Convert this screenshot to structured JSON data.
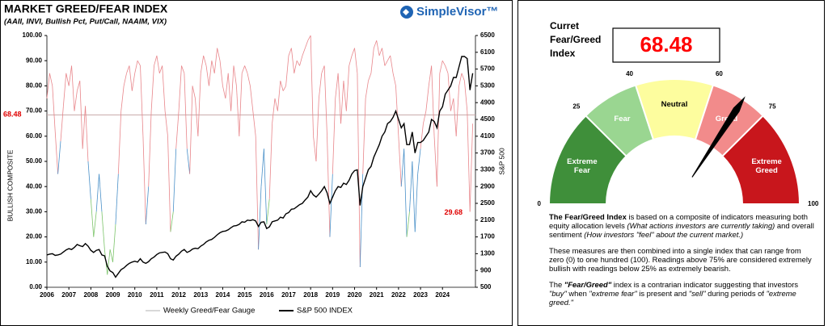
{
  "logo": "SimpleVisor™",
  "chart_data": [
    {
      "type": "line",
      "title": "MARKET GREED/FEAR INDEX",
      "subtitle": "(AAII, INVI, Bullish Pct, Put/Call, NAAIM, VIX)",
      "y_label": "BULLISH COMPOSITE",
      "y2_label": "S&P 500",
      "xlim": [
        2006,
        2025.5
      ],
      "xticks": [
        2006,
        2007,
        2008,
        2009,
        2010,
        2011,
        2012,
        2013,
        2014,
        2015,
        2016,
        2017,
        2018,
        2019,
        2020,
        2021,
        2022,
        2023,
        2024
      ],
      "ylim": [
        0,
        100
      ],
      "yticks": [
        {
          "value": 0,
          "label": "0.00"
        },
        {
          "value": 10,
          "label": "10.00"
        },
        {
          "value": 20,
          "label": "20.00"
        },
        {
          "value": 30,
          "label": "30.00"
        },
        {
          "value": 40,
          "label": "40.00"
        },
        {
          "value": 50,
          "label": "50.00"
        },
        {
          "value": 60,
          "label": "60.00"
        },
        {
          "value": 70,
          "label": "70.00"
        },
        {
          "value": 80,
          "label": "80.00"
        },
        {
          "value": 90,
          "label": "90.00"
        },
        {
          "value": 100,
          "label": "100.00"
        }
      ],
      "y2lim": [
        500,
        6500
      ],
      "y2ticks": [
        500,
        900,
        1300,
        1700,
        2100,
        2500,
        2900,
        3300,
        3700,
        4100,
        4500,
        4900,
        5300,
        5700,
        6100,
        6500
      ],
      "grid": false,
      "reference_line": {
        "value": 68.48,
        "label": "68.48",
        "color": "#c8a8a8"
      },
      "annotation": {
        "value": 29.68,
        "label": "29.68",
        "color": "#e00000"
      },
      "x": [
        2006,
        2006.125,
        2006.25,
        2006.375,
        2006.5,
        2006.625,
        2006.75,
        2006.875,
        2007,
        2007.125,
        2007.25,
        2007.375,
        2007.5,
        2007.625,
        2007.75,
        2007.875,
        2008,
        2008.125,
        2008.25,
        2008.375,
        2008.5,
        2008.625,
        2008.75,
        2008.875,
        2009,
        2009.125,
        2009.25,
        2009.375,
        2009.5,
        2009.625,
        2009.75,
        2009.875,
        2010,
        2010.125,
        2010.25,
        2010.375,
        2010.5,
        2010.625,
        2010.75,
        2010.875,
        2011,
        2011.125,
        2011.25,
        2011.375,
        2011.5,
        2011.625,
        2011.75,
        2011.875,
        2012,
        2012.125,
        2012.25,
        2012.375,
        2012.5,
        2012.625,
        2012.75,
        2012.875,
        2013,
        2013.125,
        2013.25,
        2013.375,
        2013.5,
        2013.625,
        2013.75,
        2013.875,
        2014,
        2014.125,
        2014.25,
        2014.375,
        2014.5,
        2014.625,
        2014.75,
        2014.875,
        2015,
        2015.125,
        2015.25,
        2015.375,
        2015.5,
        2015.625,
        2015.75,
        2015.875,
        2016,
        2016.125,
        2016.25,
        2016.375,
        2016.5,
        2016.625,
        2016.75,
        2016.875,
        2017,
        2017.125,
        2017.25,
        2017.375,
        2017.5,
        2017.625,
        2017.75,
        2017.875,
        2018,
        2018.125,
        2018.25,
        2018.375,
        2018.5,
        2018.625,
        2018.75,
        2018.875,
        2019,
        2019.125,
        2019.25,
        2019.375,
        2019.5,
        2019.625,
        2019.75,
        2019.875,
        2020,
        2020.125,
        2020.25,
        2020.375,
        2020.5,
        2020.625,
        2020.75,
        2020.875,
        2021,
        2021.125,
        2021.25,
        2021.375,
        2021.5,
        2021.625,
        2021.75,
        2021.875,
        2022,
        2022.125,
        2022.25,
        2022.375,
        2022.5,
        2022.625,
        2022.75,
        2022.875,
        2023,
        2023.125,
        2023.25,
        2023.375,
        2023.5,
        2023.625,
        2023.75,
        2023.875,
        2024,
        2024.125,
        2024.25,
        2024.375,
        2024.5,
        2024.625,
        2024.75,
        2024.875,
        2025,
        2025.125,
        2025.25,
        2025.375
      ],
      "series": [
        {
          "name": "Weekly Greed/Fear Gauge",
          "color": "#b0b0b0",
          "color_bands": [
            {
              "min": 60,
              "color": "#e8868b"
            },
            {
              "min": 40,
              "color": "#4a90c8"
            },
            {
              "min": 0,
              "color": "#7cc46a"
            }
          ],
          "values": [
            75,
            85,
            80,
            62,
            45,
            58,
            72,
            85,
            80,
            88,
            70,
            78,
            82,
            55,
            72,
            50,
            35,
            20,
            30,
            45,
            30,
            15,
            5,
            15,
            10,
            25,
            45,
            70,
            80,
            85,
            88,
            78,
            85,
            90,
            88,
            60,
            25,
            40,
            70,
            88,
            92,
            85,
            88,
            70,
            60,
            22,
            30,
            55,
            70,
            88,
            85,
            55,
            45,
            80,
            75,
            60,
            85,
            92,
            88,
            80,
            90,
            85,
            95,
            90,
            80,
            75,
            85,
            70,
            88,
            80,
            60,
            85,
            88,
            85,
            80,
            70,
            60,
            15,
            40,
            55,
            25,
            35,
            65,
            75,
            70,
            82,
            78,
            80,
            92,
            95,
            85,
            90,
            88,
            92,
            95,
            98,
            100,
            60,
            50,
            75,
            85,
            88,
            60,
            20,
            45,
            75,
            85,
            65,
            82,
            70,
            88,
            92,
            95,
            85,
            8,
            45,
            75,
            82,
            85,
            95,
            98,
            92,
            95,
            88,
            90,
            92,
            85,
            80,
            60,
            40,
            55,
            20,
            30,
            50,
            22,
            45,
            55,
            65,
            70,
            80,
            88,
            60,
            40,
            85,
            90,
            88,
            85,
            70,
            75,
            60,
            80,
            85,
            82,
            70,
            30,
            65
          ]
        },
        {
          "name": "S&P 500 INDEX",
          "color": "#000000",
          "axis": "y2",
          "values": [
            1270,
            1290,
            1300,
            1260,
            1270,
            1290,
            1340,
            1390,
            1420,
            1400,
            1450,
            1520,
            1490,
            1470,
            1540,
            1480,
            1380,
            1330,
            1380,
            1400,
            1270,
            1250,
            1000,
            890,
            850,
            740,
            830,
            920,
            960,
            1020,
            1070,
            1100,
            1120,
            1100,
            1180,
            1100,
            1070,
            1110,
            1180,
            1220,
            1280,
            1320,
            1330,
            1340,
            1300,
            1180,
            1150,
            1240,
            1290,
            1360,
            1400,
            1330,
            1360,
            1410,
            1430,
            1420,
            1480,
            1520,
            1580,
            1620,
            1640,
            1690,
            1750,
            1800,
            1830,
            1840,
            1870,
            1920,
            1960,
            1970,
            2000,
            2060,
            2050,
            2100,
            2090,
            2110,
            2080,
            1950,
            2050,
            2060,
            1900,
            1940,
            2060,
            2080,
            2100,
            2170,
            2150,
            2250,
            2280,
            2360,
            2370,
            2420,
            2470,
            2500,
            2580,
            2650,
            2800,
            2700,
            2650,
            2720,
            2800,
            2900,
            2750,
            2500,
            2650,
            2800,
            2900,
            2880,
            2980,
            2950,
            3050,
            3200,
            3280,
            3300,
            2450,
            2900,
            3100,
            3300,
            3380,
            3600,
            3750,
            3900,
            4100,
            4200,
            4400,
            4450,
            4550,
            4700,
            4500,
            4300,
            4400,
            3900,
            3900,
            4200,
            3700,
            3950,
            3950,
            4000,
            4100,
            4200,
            4500,
            4450,
            4300,
            4700,
            4800,
            5100,
            5200,
            5300,
            5500,
            5500,
            5750,
            6000,
            6000,
            5950,
            5200,
            5600
          ]
        }
      ]
    },
    {
      "type": "gauge",
      "title_lines": [
        "Curret",
        "Fear/Greed",
        "Index"
      ],
      "value": 68.48,
      "value_color": "#ff0000",
      "range": [
        0,
        100
      ],
      "ticks": [
        0,
        25,
        40,
        60,
        75,
        100
      ],
      "segments": [
        {
          "name": "Extreme Fear",
          "from": 0,
          "to": 25,
          "color": "#3f8f3a",
          "text_color": "#ffffff"
        },
        {
          "name": "Fear",
          "from": 25,
          "to": 40,
          "color": "#9ad691",
          "text_color": "#ffffff"
        },
        {
          "name": "Neutral",
          "from": 40,
          "to": 60,
          "color": "#fdfd9e",
          "text_color": "#000000"
        },
        {
          "name": "Greed",
          "from": 60,
          "to": 75,
          "color": "#f28b8b",
          "text_color": "#ffffff"
        },
        {
          "name": "Extreme Greed",
          "from": 75,
          "to": 100,
          "color": "#c8161c",
          "text_color": "#ffffff"
        }
      ]
    }
  ],
  "description": [
    [
      {
        "text": "The Fear/Greed Index",
        "style": "b"
      },
      {
        "text": " is based on a composite of indicators measuring both equity allocation levels "
      },
      {
        "text": "(What actions investors are currently taking)",
        "style": "i"
      },
      {
        "text": " and overall sentiment "
      },
      {
        "text": "(How investors \"feel\" about the current market.)",
        "style": "i"
      }
    ],
    [
      {
        "text": "These measures are then combined into a single index that can range from zero (0) to one hundred (100). Readings above 75% are considered extremely bullish with readings below 25% as extremely bearish."
      }
    ],
    [
      {
        "text": "The "
      },
      {
        "text": "\"Fear/Greed\"",
        "style": "bi"
      },
      {
        "text": " index is a contrarian indicator suggesting that investors "
      },
      {
        "text": "\"buy\"",
        "style": "i"
      },
      {
        "text": " when "
      },
      {
        "text": "\"extreme fear\"",
        "style": "i"
      },
      {
        "text": " is present and "
      },
      {
        "text": "\"sell\"",
        "style": "i"
      },
      {
        "text": " during periods of "
      },
      {
        "text": "\"extreme greed.\"",
        "style": "i"
      }
    ]
  ]
}
